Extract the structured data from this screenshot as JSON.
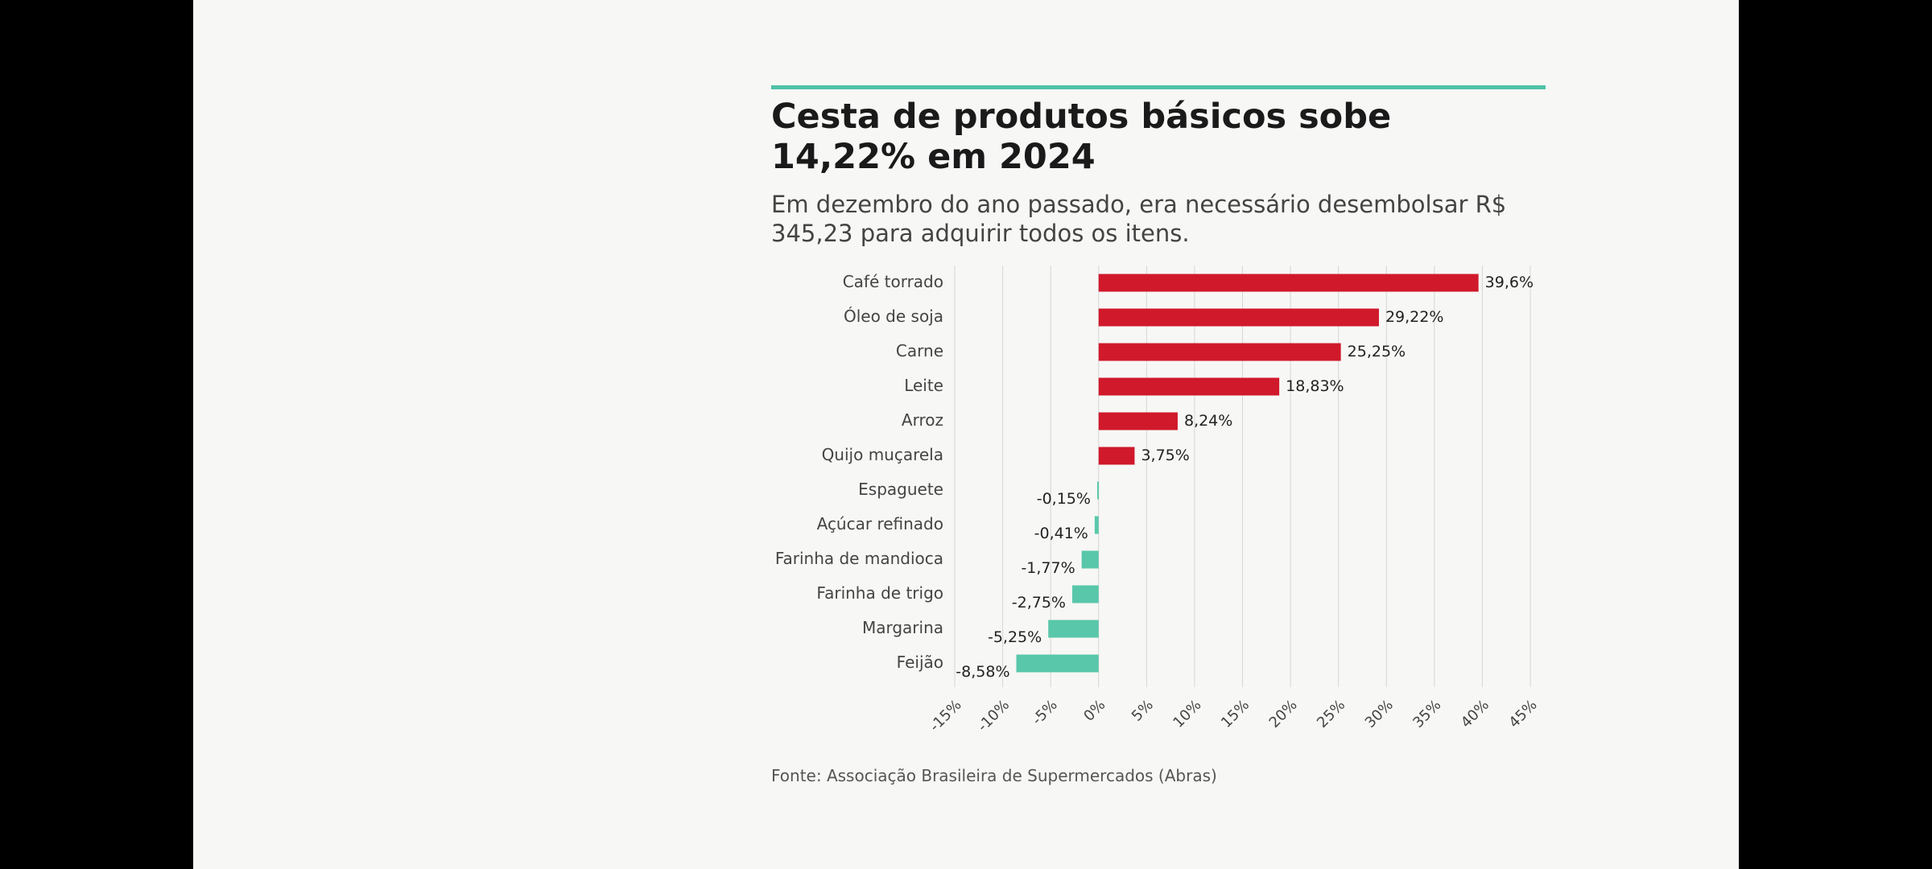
{
  "title": "Cesta de produtos básicos sobe 14,22% em 2024",
  "subtitle": "Em dezembro do ano passado, era necessário desembolsar R$ 345,23 para adquirir todos os itens.",
  "source": "Fonte: Associação Brasileira de Supermercados (Abras)",
  "colors": {
    "accent": "#4fc2a6",
    "positive": "#d0192b",
    "negative": "#59c7a9",
    "grid": "#d6d6d6"
  },
  "chart_data": {
    "type": "bar",
    "orientation": "horizontal",
    "title": "Cesta de produtos básicos sobe 14,22% em 2024",
    "xlabel": "",
    "ylabel": "",
    "xlim": [
      -15,
      45
    ],
    "grid": true,
    "categories": [
      "Café torrado",
      "Óleo de soja",
      "Carne",
      "Leite",
      "Arroz",
      "Quijo muçarela",
      "Espaguete",
      "Açúcar refinado",
      "Farinha de mandioca",
      "Farinha de trigo",
      "Margarina",
      "Feijão"
    ],
    "values": [
      39.6,
      29.22,
      25.25,
      18.83,
      8.24,
      3.75,
      -0.15,
      -0.41,
      -1.77,
      -2.75,
      -5.25,
      -8.58
    ],
    "value_labels": [
      "39,6%",
      "29,22%",
      "25,25%",
      "18,83%",
      "8,24%",
      "3,75%",
      "-0,15%",
      "-0,41%",
      "-1,77%",
      "-2,75%",
      "-5,25%",
      "-8,58%"
    ],
    "ticks": [
      -15,
      -10,
      -5,
      0,
      5,
      10,
      15,
      20,
      25,
      30,
      35,
      40,
      45
    ],
    "tick_labels": [
      "-15%",
      "-10%",
      "-5%",
      "0%",
      "5%",
      "10%",
      "15%",
      "20%",
      "25%",
      "30%",
      "35%",
      "40%",
      "45%"
    ]
  }
}
